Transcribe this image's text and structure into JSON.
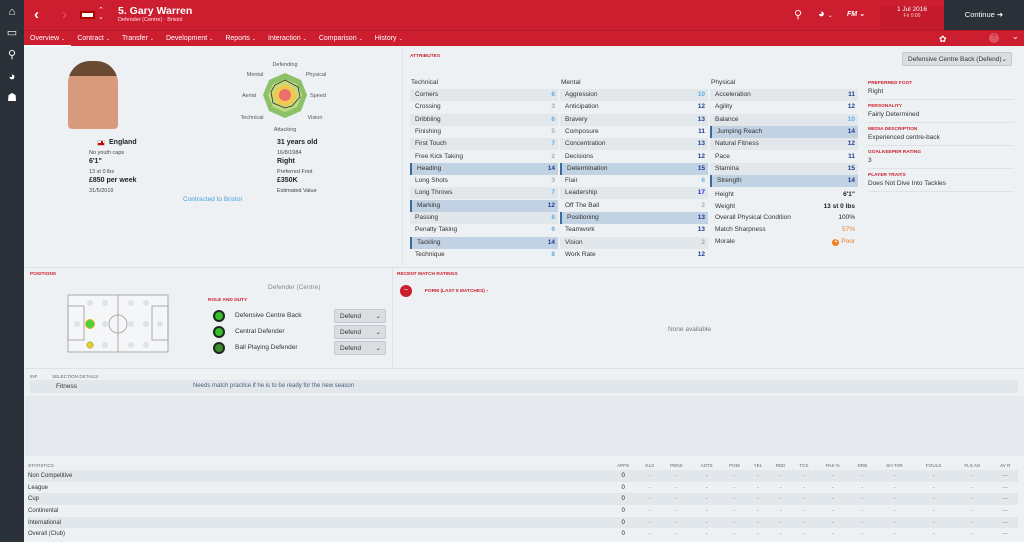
{
  "sidebar": {
    "items": [
      "home-icon",
      "inbox-icon",
      "search-icon",
      "world-icon",
      "staff-icon"
    ]
  },
  "header": {
    "player_name": "5. Gary Warren",
    "player_subtitle": "Defender (Centre) · Bristol",
    "date": "1 Jul 2016",
    "time": "Fri 0:00",
    "continue": "Continue",
    "fm": "FM"
  },
  "nav": {
    "tabs": [
      "Overview",
      "Contract",
      "Transfer",
      "Development",
      "Reports",
      "Interaction",
      "Comparison",
      "History"
    ]
  },
  "profile": {
    "nationality": "England",
    "youth_caps": "No youth caps",
    "height": "6'1\"",
    "weight": "13 st 0 lbs",
    "wage": "£850 per week",
    "contract_end": "31/5/2019",
    "age": "31 years old",
    "dob": "16/8/1984",
    "foot": "Right",
    "foot_label": "Preferred Foot",
    "value": "£350K",
    "value_label": "Estimated Value",
    "contract_link": "Contracted to Bristol",
    "radar_labels": [
      "Defending",
      "Physical",
      "Speed",
      "Vision",
      "Attacking",
      "Technical",
      "Aerial",
      "Mental"
    ]
  },
  "attributes": {
    "title": "ATTRIBUTES",
    "role_select": "Defensive Centre Back (Defend)",
    "technical": {
      "title": "Technical",
      "rows": [
        [
          "Corners",
          6
        ],
        [
          "Crossing",
          3
        ],
        [
          "Dribbling",
          6
        ],
        [
          "Finishing",
          5
        ],
        [
          "First Touch",
          7
        ],
        [
          "Free Kick Taking",
          2
        ],
        [
          "Heading",
          14
        ],
        [
          "Long Shots",
          3
        ],
        [
          "Long Throws",
          7
        ],
        [
          "Marking",
          12
        ],
        [
          "Passing",
          8
        ],
        [
          "Penalty Taking",
          6
        ],
        [
          "Tackling",
          14
        ],
        [
          "Technique",
          8
        ]
      ],
      "key": [
        "Heading",
        "Marking",
        "Tackling"
      ]
    },
    "mental": {
      "title": "Mental",
      "rows": [
        [
          "Aggression",
          10
        ],
        [
          "Anticipation",
          12
        ],
        [
          "Bravery",
          13
        ],
        [
          "Composure",
          11
        ],
        [
          "Concentration",
          13
        ],
        [
          "Decisions",
          12
        ],
        [
          "Determination",
          15
        ],
        [
          "Flair",
          6
        ],
        [
          "Leadership",
          17
        ],
        [
          "Off The Ball",
          2
        ],
        [
          "Positioning",
          13
        ],
        [
          "Teamwork",
          13
        ],
        [
          "Vision",
          2
        ],
        [
          "Work Rate",
          12
        ]
      ],
      "key": [
        "Determination",
        "Positioning"
      ]
    },
    "physical": {
      "title": "Physical",
      "rows": [
        [
          "Acceleration",
          11
        ],
        [
          "Agility",
          12
        ],
        [
          "Balance",
          10
        ],
        [
          "Jumping Reach",
          14
        ],
        [
          "Natural Fitness",
          12
        ],
        [
          "Pace",
          11
        ],
        [
          "Stamina",
          15
        ],
        [
          "Strength",
          14
        ]
      ],
      "key": [
        "Jumping Reach",
        "Strength"
      ]
    },
    "extra": [
      [
        "Height",
        "6'1\""
      ],
      [
        "Weight",
        "13 st 0 lbs"
      ],
      [
        "Overall Physical Condition",
        "100%"
      ],
      [
        "Match Sharpness",
        "57%"
      ],
      [
        "Morale",
        "Poor"
      ]
    ]
  },
  "info": [
    {
      "title": "PREFERRED FOOT",
      "value": "Right"
    },
    {
      "title": "PERSONALITY",
      "value": "Fairly Determined"
    },
    {
      "title": "MEDIA DESCRIPTION",
      "value": "Experienced centre-back"
    },
    {
      "title": "GOALKEEPER RATING",
      "value": "3"
    },
    {
      "title": "PLAYER TRAITS",
      "value": "Does Not Dive Into Tackles"
    }
  ],
  "positions": {
    "title": "POSITIONS",
    "position": "Defender (Centre)",
    "role_title": "ROLE AND DUTY",
    "roles": [
      {
        "name": "Defensive Centre Back",
        "duty": "Defend"
      },
      {
        "name": "Central Defender",
        "duty": "Defend"
      },
      {
        "name": "Ball Playing Defender",
        "duty": "Defend"
      }
    ]
  },
  "ratings": {
    "title": "RECENT MATCH RATINGS",
    "form": "FORM (LAST 5 MATCHES) ›",
    "empty": "None available"
  },
  "selection": {
    "inp": "INF",
    "title": "SELECTION DETAILS",
    "label": "Fitness",
    "text": "Needs match practice if he is to be ready for the new season"
  },
  "statistics": {
    "title": "STATISTICS",
    "columns": [
      "APPS",
      "GLS",
      "PENS",
      "ASTS",
      "POM",
      "YEL",
      "RED",
      "TCK",
      "PAS %",
      "DRB",
      "SH TAR",
      "FOULS",
      "FLS AG",
      "AV R"
    ],
    "rows": [
      {
        "label": "Non Competitive",
        "values": [
          "0",
          "-",
          "-",
          "-",
          "-",
          "-",
          "-",
          "-",
          "-",
          "-",
          "-",
          "-",
          "-",
          "---"
        ]
      },
      {
        "label": "League",
        "values": [
          "0",
          "-",
          "-",
          "-",
          "-",
          "-",
          "-",
          "-",
          "-",
          "-",
          "-",
          "-",
          "-",
          "---"
        ]
      },
      {
        "label": "Cup",
        "values": [
          "0",
          "-",
          "-",
          "-",
          "-",
          "-",
          "-",
          "-",
          "-",
          "-",
          "-",
          "-",
          "-",
          "---"
        ]
      },
      {
        "label": "Continental",
        "values": [
          "0",
          "-",
          "-",
          "-",
          "-",
          "-",
          "-",
          "-",
          "-",
          "-",
          "-",
          "-",
          "-",
          "---"
        ]
      },
      {
        "label": "International",
        "values": [
          "0",
          "-",
          "-",
          "-",
          "-",
          "-",
          "-",
          "-",
          "-",
          "-",
          "-",
          "-",
          "-",
          "---"
        ]
      },
      {
        "label": "Overall (Club)",
        "values": [
          "0",
          "-",
          "-",
          "-",
          "-",
          "-",
          "-",
          "-",
          "-",
          "-",
          "-",
          "-",
          "-",
          "---"
        ]
      }
    ]
  },
  "colors": {
    "brand": "#cc1e2f",
    "sidebar": "#2b3138",
    "attr_low": "#aaaaaa",
    "attr_mid": "#5aaee8",
    "attr_high": "#1e3c8c",
    "warning": "#ef7d22"
  }
}
